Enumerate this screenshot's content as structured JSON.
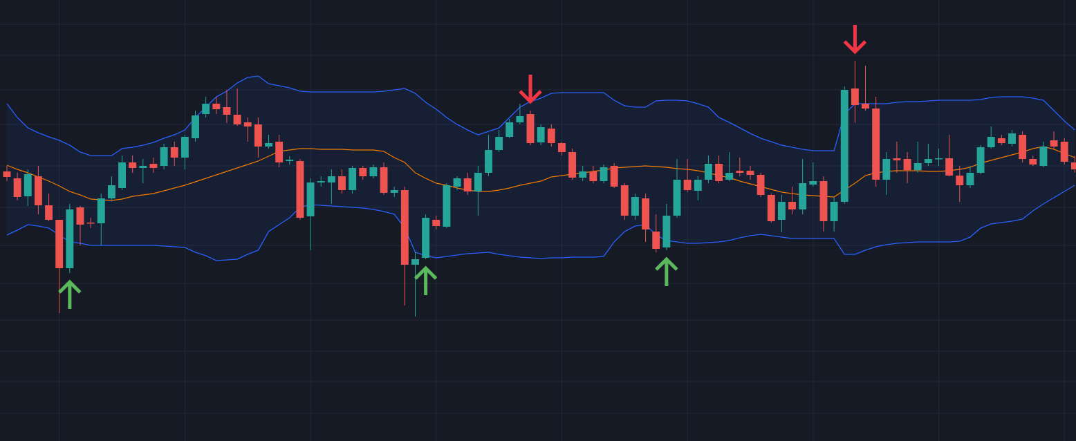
{
  "chart_data": {
    "type": "candlestick",
    "background": "#161a25",
    "grid": true,
    "grid_color": "#232835",
    "tick_labels": false,
    "xlim": [
      -0.66,
      102.11
    ],
    "ylim": [
      0,
      638
    ],
    "xticks": [
      5,
      17,
      29,
      41,
      53,
      65,
      77,
      89,
      101
    ],
    "yticks": [
      40,
      86,
      130,
      175,
      228,
      283,
      338,
      398,
      458,
      508,
      558,
      603
    ],
    "up_color": "#26a69a",
    "down_color": "#ef5350",
    "x": [
      0,
      1,
      2,
      3,
      4,
      5,
      6,
      7,
      8,
      9,
      10,
      11,
      12,
      13,
      14,
      15,
      16,
      17,
      18,
      19,
      20,
      21,
      22,
      23,
      24,
      25,
      26,
      27,
      28,
      29,
      30,
      31,
      32,
      33,
      34,
      35,
      36,
      37,
      38,
      39,
      40,
      41,
      42,
      43,
      44,
      45,
      46,
      47,
      48,
      49,
      50,
      51,
      52,
      53,
      54,
      55,
      56,
      57,
      58,
      59,
      60,
      61,
      62,
      63,
      64,
      65,
      66,
      67,
      68,
      69,
      70,
      71,
      72,
      73,
      74,
      75,
      76,
      77,
      78,
      79,
      80,
      81,
      82,
      83,
      84,
      85,
      86,
      87,
      88,
      89,
      90,
      91,
      92,
      93,
      94,
      95,
      96,
      97,
      98,
      99,
      100,
      101,
      102
    ],
    "open": [
      390,
      380,
      354,
      383,
      341,
      320,
      250,
      338,
      316,
      315,
      351,
      366,
      403,
      395,
      401,
      398,
      425,
      410,
      438,
      473,
      488,
      483,
      472,
      461,
      458,
      426,
      433,
      405,
      405,
      325,
      374,
      374,
      383,
      363,
      395,
      383,
      396,
      359,
      363,
      255,
      265,
      320,
      310,
      368,
      380,
      361,
      388,
      421,
      440,
      461,
      473,
      432,
      452,
      431,
      418,
      381,
      390,
      376,
      398,
      370,
      326,
      351,
      303,
      280,
      326,
      378,
      362,
      378,
      401,
      378,
      391,
      391,
      385,
      356,
      320,
      346,
      335,
      371,
      376,
      318,
      346,
      510,
      488,
      481,
      378,
      409,
      408,
      392,
      402,
      408,
      409,
      384,
      370,
      388,
      425,
      438,
      430,
      443,
      408,
      398,
      435,
      433,
      403
    ],
    "high": [
      398,
      388,
      393,
      398,
      358,
      320,
      343,
      340,
      323,
      358,
      383,
      413,
      413,
      408,
      410,
      430,
      433,
      443,
      478,
      498,
      498,
      508,
      510,
      468,
      468,
      443,
      443,
      412,
      408,
      380,
      383,
      393,
      393,
      398,
      398,
      400,
      403,
      368,
      368,
      273,
      328,
      326,
      373,
      383,
      388,
      398,
      443,
      450,
      466,
      488,
      478,
      458,
      458,
      433,
      423,
      398,
      398,
      400,
      402,
      373,
      358,
      358,
      328,
      343,
      408,
      408,
      383,
      413,
      413,
      418,
      410,
      398,
      388,
      358,
      356,
      368,
      408,
      403,
      383,
      353,
      513,
      550,
      543,
      498,
      418,
      433,
      418,
      433,
      430,
      423,
      443,
      398,
      398,
      428,
      455,
      443,
      450,
      448,
      413,
      433,
      448,
      438,
      413
    ],
    "low": [
      376,
      348,
      340,
      328,
      318,
      185,
      243,
      283,
      308,
      283,
      348,
      363,
      388,
      373,
      388,
      393,
      398,
      393,
      433,
      468,
      473,
      460,
      456,
      433,
      410,
      423,
      396,
      400,
      320,
      276,
      368,
      343,
      358,
      358,
      378,
      380,
      356,
      353,
      196,
      180,
      263,
      306,
      308,
      363,
      356,
      326,
      383,
      418,
      438,
      458,
      428,
      428,
      426,
      413,
      378,
      376,
      373,
      373,
      366,
      320,
      320,
      288,
      273,
      276,
      323,
      360,
      348,
      373,
      373,
      376,
      383,
      378,
      353,
      316,
      302,
      328,
      328,
      368,
      303,
      303,
      343,
      460,
      478,
      368,
      356,
      388,
      373,
      388,
      398,
      398,
      383,
      346,
      366,
      386,
      423,
      428,
      426,
      403,
      398,
      396,
      423,
      400,
      388
    ],
    "close": [
      382,
      353,
      386,
      341,
      320,
      250,
      335,
      313,
      315,
      351,
      370,
      403,
      395,
      398,
      395,
      425,
      410,
      440,
      471,
      488,
      480,
      472,
      458,
      455,
      426,
      431,
      403,
      407,
      323,
      374,
      376,
      383,
      363,
      395,
      383,
      396,
      359,
      363,
      255,
      263,
      323,
      311,
      370,
      380,
      361,
      388,
      421,
      440,
      461,
      470,
      431,
      454,
      431,
      418,
      381,
      390,
      376,
      396,
      368,
      326,
      353,
      306,
      278,
      326,
      378,
      363,
      378,
      401,
      376,
      388,
      388,
      385,
      356,
      318,
      346,
      335,
      373,
      376,
      318,
      346,
      508,
      486,
      481,
      378,
      408,
      406,
      392,
      402,
      408,
      409,
      384,
      370,
      388,
      425,
      440,
      431,
      445,
      408,
      400,
      426,
      426,
      404,
      393
    ],
    "bands": {
      "color": "#2962ff",
      "middle_color": "#f57c00",
      "fill": "rgba(41,98,255,0.07)",
      "upper": [
        488,
        468,
        453,
        446,
        440,
        435,
        428,
        418,
        413,
        413,
        413,
        423,
        425,
        428,
        432,
        438,
        443,
        450,
        468,
        483,
        498,
        506,
        518,
        526,
        528,
        517,
        514,
        511,
        506,
        505,
        505,
        505,
        505,
        505,
        505,
        505,
        506,
        508,
        510,
        503,
        490,
        480,
        468,
        458,
        450,
        443,
        448,
        453,
        468,
        483,
        491,
        496,
        503,
        504,
        504,
        504,
        504,
        504,
        493,
        485,
        483,
        483,
        492,
        493,
        493,
        492,
        488,
        483,
        468,
        461,
        453,
        445,
        438,
        433,
        428,
        425,
        422,
        420,
        420,
        420,
        473,
        488,
        488,
        488,
        488,
        490,
        491,
        491,
        492,
        493,
        493,
        493,
        493,
        494,
        497,
        498,
        498,
        498,
        496,
        493,
        478,
        463,
        450
      ],
      "middle": [
        399,
        393,
        388,
        382,
        376,
        369,
        361,
        356,
        350,
        349,
        348,
        350,
        354,
        356,
        358,
        362,
        366,
        370,
        375,
        380,
        385,
        390,
        395,
        400,
        405,
        412,
        419,
        421,
        423,
        423,
        422,
        422,
        422,
        421,
        421,
        421,
        419,
        410,
        403,
        388,
        380,
        373,
        370,
        366,
        363,
        361,
        361,
        363,
        366,
        370,
        373,
        376,
        382,
        384,
        386,
        388,
        390,
        392,
        395,
        396,
        397,
        398,
        397,
        396,
        394,
        393,
        391,
        388,
        384,
        381,
        376,
        372,
        368,
        364,
        360,
        358,
        356,
        355,
        354,
        353,
        363,
        373,
        384,
        388,
        390,
        391,
        391,
        391,
        390,
        390,
        391,
        393,
        396,
        402,
        406,
        410,
        414,
        418,
        423,
        426,
        422,
        416,
        410
      ],
      "lower": [
        298,
        305,
        313,
        311,
        308,
        298,
        288,
        286,
        283,
        283,
        283,
        283,
        283,
        283,
        283,
        282,
        281,
        280,
        273,
        268,
        261,
        262,
        263,
        270,
        276,
        303,
        313,
        323,
        338,
        342,
        341,
        340,
        339,
        338,
        337,
        335,
        332,
        328,
        308,
        273,
        268,
        265,
        267,
        269,
        271,
        272,
        273,
        270,
        268,
        266,
        265,
        264,
        265,
        265,
        266,
        266,
        266,
        267,
        288,
        303,
        311,
        313,
        298,
        290,
        288,
        286,
        286,
        287,
        288,
        290,
        294,
        297,
        299,
        297,
        295,
        293,
        293,
        293,
        293,
        293,
        270,
        270,
        276,
        281,
        284,
        286,
        287,
        288,
        288,
        288,
        288,
        289,
        295,
        308,
        314,
        316,
        318,
        321,
        333,
        343,
        352,
        361,
        370
      ]
    },
    "buy_signals": {
      "color": "#5cb85c",
      "x": [
        6,
        40,
        63
      ]
    },
    "sell_signals": {
      "color": "#f23645",
      "x": [
        50,
        81
      ]
    }
  }
}
